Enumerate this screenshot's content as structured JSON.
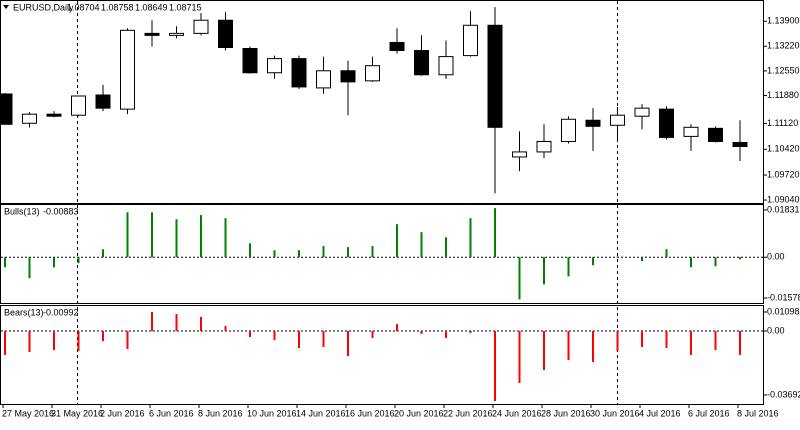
{
  "chart_data": [
    {
      "type": "candlestick",
      "title": "EURUSD,Daily",
      "header_values": [
        1.08704,
        1.08758,
        1.08649,
        1.08715
      ],
      "categories": [
        "27 May 2016",
        null,
        "31 May 2016",
        null,
        "2 Jun 2016",
        null,
        "6 Jun 2016",
        null,
        "8 Jun 2016",
        null,
        "10 Jun 2016",
        null,
        "14 Jun 2016",
        null,
        "16 Jun 2016",
        null,
        "20 Jun 2016",
        null,
        "22 Jun 2016",
        null,
        "24 Jun 2016",
        null,
        "28 Jun 2016",
        null,
        "30 Jun 2016",
        null,
        "4 Jul 2016",
        null,
        "6 Jul 2016",
        null,
        "8 Jul 2016"
      ],
      "open": [
        1.11923,
        1.11127,
        1.11374,
        1.11346,
        1.11895,
        1.11511,
        1.1357,
        1.13516,
        1.1357,
        1.13927,
        1.13159,
        1.125,
        1.12884,
        1.12088,
        1.12554,
        1.1228,
        1.13323,
        1.13104,
        1.12445,
        1.12966,
        1.1379,
        1.10211,
        1.10348,
        1.10632,
        1.11209,
        1.11072,
        1.11319,
        1.11511,
        1.1077,
        1.10989,
        1.10605
      ],
      "high": [
        1.1195,
        1.11429,
        1.11456,
        1.1188,
        1.1217,
        1.13708,
        1.13927,
        1.13763,
        1.1412,
        1.14147,
        1.13214,
        1.12966,
        1.12966,
        1.12939,
        1.12829,
        1.12939,
        1.13708,
        1.13516,
        1.13378,
        1.14175,
        1.14284,
        1.10907,
        1.11099,
        1.11319,
        1.11538,
        1.11566,
        1.11648,
        1.11593,
        1.11099,
        1.11044,
        1.11209
      ],
      "low": [
        1.11099,
        1.11017,
        1.11291,
        1.11319,
        1.11456,
        1.11374,
        1.13214,
        1.13433,
        1.13516,
        1.13104,
        1.12472,
        1.12335,
        1.1206,
        1.11923,
        1.11346,
        1.12252,
        1.13021,
        1.12417,
        1.12335,
        1.12939,
        1.09222,
        1.09826,
        1.10183,
        1.10577,
        1.10375,
        1.10687,
        1.10962,
        1.10687,
        1.10375,
        1.10605,
        1.10101
      ],
      "close": [
        1.11099,
        1.11374,
        1.11319,
        1.11868,
        1.11538,
        1.13653,
        1.13516,
        1.1357,
        1.13927,
        1.13186,
        1.125,
        1.12884,
        1.12115,
        1.12554,
        1.12252,
        1.12692,
        1.13104,
        1.12445,
        1.12939,
        1.1379,
        1.11017,
        1.10348,
        1.10632,
        1.11236,
        1.11044,
        1.11346,
        1.11538,
        1.10742,
        1.11017,
        1.10632,
        1.10495
      ],
      "up_color": "#ffffff",
      "down_color": "#000000",
      "ylim": [
        1.0896,
        1.1445
      ],
      "yticks": [
        {
          "value": 1.139,
          "label": "1.13900"
        },
        {
          "value": 1.1322,
          "label": "1.13220"
        },
        {
          "value": 1.1255,
          "label": "1.12550"
        },
        {
          "value": 1.1188,
          "label": "1.11880"
        },
        {
          "value": 1.1112,
          "label": "1.11120"
        },
        {
          "value": 1.1042,
          "label": "1.10420"
        },
        {
          "value": 1.0972,
          "label": "1.09720"
        },
        {
          "value": 1.0904,
          "label": "1.09040"
        }
      ]
    },
    {
      "type": "bar",
      "title": "Bulls(13)",
      "current": -0.00883,
      "color": "#008000",
      "values": [
        -0.0039,
        -0.0081,
        -0.0039,
        -0.0023,
        0.0031,
        0.0174,
        0.0174,
        0.0147,
        0.0163,
        0.0151,
        0.0054,
        0.0027,
        0.0027,
        0.0043,
        0.0039,
        0.0043,
        0.0128,
        0.0097,
        0.0077,
        0.0151,
        0.019,
        -0.0163,
        -0.0105,
        -0.0074,
        -0.0031,
        0.0003,
        -0.0015,
        0.0031,
        -0.0039,
        -0.0035,
        -0.0008
      ],
      "ylim": [
        -0.0177,
        0.0202
      ],
      "yticks": [
        0.01831,
        {
          "value": 0,
          "label": "0.00"
        },
        -0.01578
      ]
    },
    {
      "type": "bar",
      "title": "Bears(13)",
      "current": -0.00992,
      "color": "#ff0000",
      "values": [
        -0.0138,
        -0.0121,
        -0.011,
        -0.0115,
        -0.0058,
        -0.0104,
        0.011,
        0.0098,
        0.0081,
        0.0029,
        -0.0035,
        -0.0052,
        -0.0098,
        -0.0092,
        -0.0144,
        -0.004,
        0.004,
        -0.0017,
        -0.004,
        -0.0012,
        -0.0404,
        -0.03,
        -0.0225,
        -0.0167,
        -0.0179,
        -0.0115,
        -0.0092,
        -0.0098,
        -0.0138,
        -0.011,
        -0.0138
      ],
      "ylim": [
        -0.04211,
        0.01444
      ],
      "yticks": [
        0.01098,
        {
          "value": 0,
          "label": "0.00"
        },
        -0.03692
      ]
    }
  ]
}
